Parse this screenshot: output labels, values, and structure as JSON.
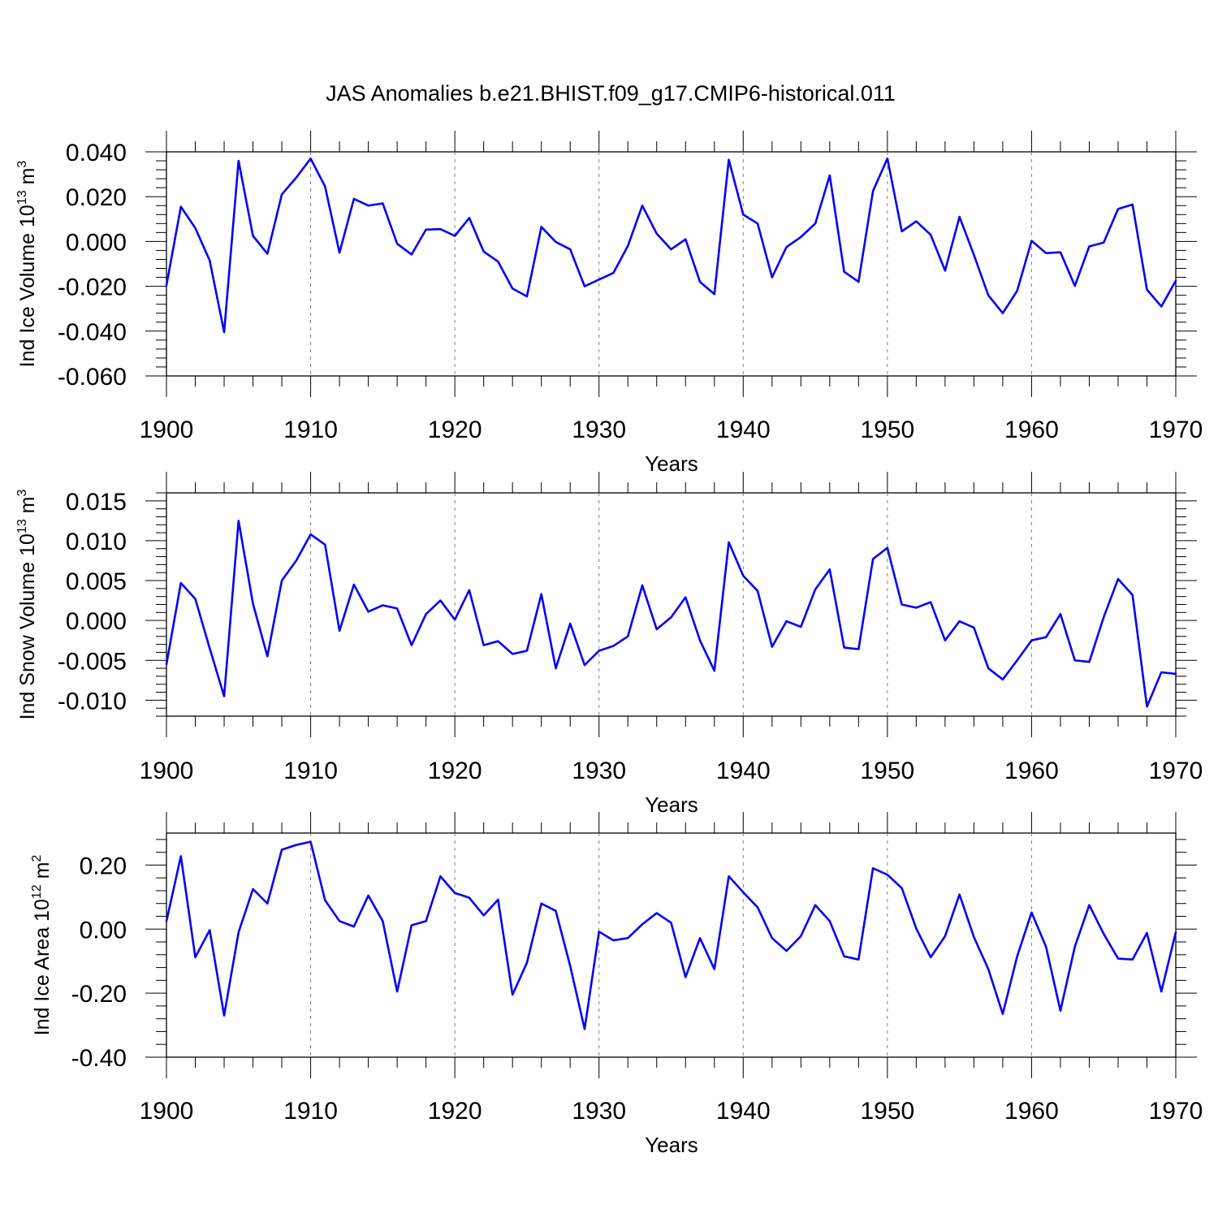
{
  "figure_title": "JAS Anomalies b.e21.BHIST.f09_g17.CMIP6-historical.011",
  "colors": {
    "line": "#0000ff",
    "axis": "#000000",
    "gridline": "#808080",
    "background": "#ffffff"
  },
  "chart_data": [
    {
      "type": "line",
      "title": "",
      "ylabel_main": "Ind Ice Volume 10",
      "ylabel_exp": "13",
      "ylabel_unit": " m",
      "ylabel_unit_exp": "3",
      "xlabel": "Years",
      "xlim": [
        1900,
        1970
      ],
      "ylim": [
        -0.06,
        0.04
      ],
      "yticks": [
        -0.06,
        -0.04,
        -0.02,
        0.0,
        0.02,
        0.04
      ],
      "ytick_labels": [
        "-0.060",
        "-0.040",
        "-0.020",
        "0.000",
        "0.020",
        "0.040"
      ],
      "ydecimals": 3,
      "xticks": [
        1900,
        1910,
        1920,
        1930,
        1940,
        1950,
        1960,
        1970
      ],
      "xtick_labels": [
        "1900",
        "1910",
        "1920",
        "1930",
        "1940",
        "1950",
        "1960",
        "1970"
      ],
      "grid_x": [
        1910,
        1920,
        1930,
        1940,
        1950,
        1960
      ],
      "series": [
        {
          "name": "Ind Ice Volume",
          "x_start": 1900,
          "values": [
            -0.0195,
            0.0155,
            0.006,
            -0.0085,
            -0.0405,
            0.036,
            0.0025,
            -0.0055,
            0.021,
            0.0285,
            0.037,
            0.0245,
            -0.005,
            0.019,
            0.016,
            0.017,
            -0.001,
            -0.0058,
            0.0053,
            0.0055,
            0.0025,
            0.0105,
            -0.0045,
            -0.009,
            -0.021,
            -0.0245,
            0.0065,
            -0.0002,
            -0.0035,
            -0.02,
            -0.017,
            -0.014,
            -0.002,
            0.016,
            0.0035,
            -0.0035,
            0.001,
            -0.018,
            -0.0235,
            0.0365,
            0.012,
            0.008,
            -0.016,
            -0.0025,
            0.002,
            0.008,
            0.0295,
            -0.0135,
            -0.018,
            0.0225,
            0.037,
            0.0045,
            0.009,
            0.003,
            -0.013,
            0.011,
            -0.006,
            -0.024,
            -0.032,
            -0.022,
            0.0003,
            -0.0052,
            -0.0048,
            -0.0198,
            -0.0022,
            -0.0005,
            0.0145,
            0.0165,
            -0.0215,
            -0.029,
            -0.0175
          ]
        }
      ]
    },
    {
      "type": "line",
      "title": "",
      "ylabel_main": "Ind Snow Volume 10",
      "ylabel_exp": "13",
      "ylabel_unit": " m",
      "ylabel_unit_exp": "3",
      "xlabel": "Years",
      "xlim": [
        1900,
        1970
      ],
      "ylim": [
        -0.012,
        0.016
      ],
      "yticks": [
        -0.01,
        -0.005,
        0.0,
        0.005,
        0.01,
        0.015
      ],
      "ytick_labels": [
        "-0.010",
        "-0.005",
        "0.000",
        "0.005",
        "0.010",
        "0.015"
      ],
      "ydecimals": 3,
      "xticks": [
        1900,
        1910,
        1920,
        1930,
        1940,
        1950,
        1960,
        1970
      ],
      "xtick_labels": [
        "1900",
        "1910",
        "1920",
        "1930",
        "1940",
        "1950",
        "1960",
        "1970"
      ],
      "grid_x": [
        1910,
        1920,
        1930,
        1940,
        1950,
        1960
      ],
      "series": [
        {
          "name": "Ind Snow Volume",
          "x_start": 1900,
          "values": [
            -0.0055,
            0.0047,
            0.0027,
            -0.0035,
            -0.0095,
            0.0125,
            0.0021,
            -0.0045,
            0.005,
            0.0075,
            0.0108,
            0.0095,
            -0.0013,
            0.0045,
            0.0011,
            0.0019,
            0.0015,
            -0.0031,
            0.0008,
            0.0025,
            0.0001,
            0.0038,
            -0.0031,
            -0.0026,
            -0.0042,
            -0.0038,
            0.0033,
            -0.006,
            -0.0004,
            -0.0056,
            -0.0038,
            -0.0032,
            -0.002,
            0.0044,
            -0.0011,
            0.0004,
            0.0029,
            -0.0025,
            -0.0063,
            0.0098,
            0.0056,
            0.0037,
            -0.0033,
            -0.0001,
            -0.0008,
            0.0039,
            0.0064,
            -0.0034,
            -0.0036,
            0.0077,
            0.0091,
            0.002,
            0.0016,
            0.0023,
            -0.0025,
            -0.0001,
            -0.0009,
            -0.006,
            -0.0074,
            -0.005,
            -0.0025,
            -0.0021,
            0.0008,
            -0.005,
            -0.0052,
            0.0004,
            0.0052,
            0.0032,
            -0.0108,
            -0.0065,
            -0.0067
          ]
        }
      ]
    },
    {
      "type": "line",
      "title": "",
      "ylabel_main": "Ind Ice Area 10",
      "ylabel_exp": "12",
      "ylabel_unit": " m",
      "ylabel_unit_exp": "2",
      "xlabel": "Years",
      "xlim": [
        1900,
        1970
      ],
      "ylim": [
        -0.4,
        0.3
      ],
      "yticks": [
        -0.4,
        -0.2,
        0.0,
        0.2
      ],
      "ytick_labels": [
        "-0.40",
        "-0.20",
        "0.00",
        "0.20"
      ],
      "ydecimals": 2,
      "xticks": [
        1900,
        1910,
        1920,
        1930,
        1940,
        1950,
        1960,
        1970
      ],
      "xtick_labels": [
        "1900",
        "1910",
        "1920",
        "1930",
        "1940",
        "1950",
        "1960",
        "1970"
      ],
      "grid_x": [
        1910,
        1920,
        1930,
        1940,
        1950,
        1960
      ],
      "series": [
        {
          "name": "Ind Ice Area",
          "x_start": 1900,
          "values": [
            0.025,
            0.228,
            -0.088,
            -0.003,
            -0.27,
            -0.01,
            0.125,
            0.08,
            0.248,
            0.263,
            0.273,
            0.09,
            0.025,
            0.008,
            0.105,
            0.025,
            -0.195,
            0.012,
            0.025,
            0.165,
            0.113,
            0.098,
            0.043,
            0.092,
            -0.205,
            -0.105,
            0.08,
            0.057,
            -0.115,
            -0.312,
            -0.008,
            -0.035,
            -0.028,
            0.015,
            0.05,
            0.02,
            -0.15,
            -0.028,
            -0.125,
            0.165,
            0.115,
            0.068,
            -0.028,
            -0.068,
            -0.022,
            0.075,
            0.025,
            -0.085,
            -0.095,
            0.19,
            0.17,
            0.128,
            0.002,
            -0.088,
            -0.022,
            0.108,
            -0.025,
            -0.125,
            -0.265,
            -0.085,
            0.052,
            -0.055,
            -0.255,
            -0.055,
            0.075,
            -0.015,
            -0.092,
            -0.095,
            -0.012,
            -0.195,
            -0.01
          ]
        }
      ]
    }
  ]
}
